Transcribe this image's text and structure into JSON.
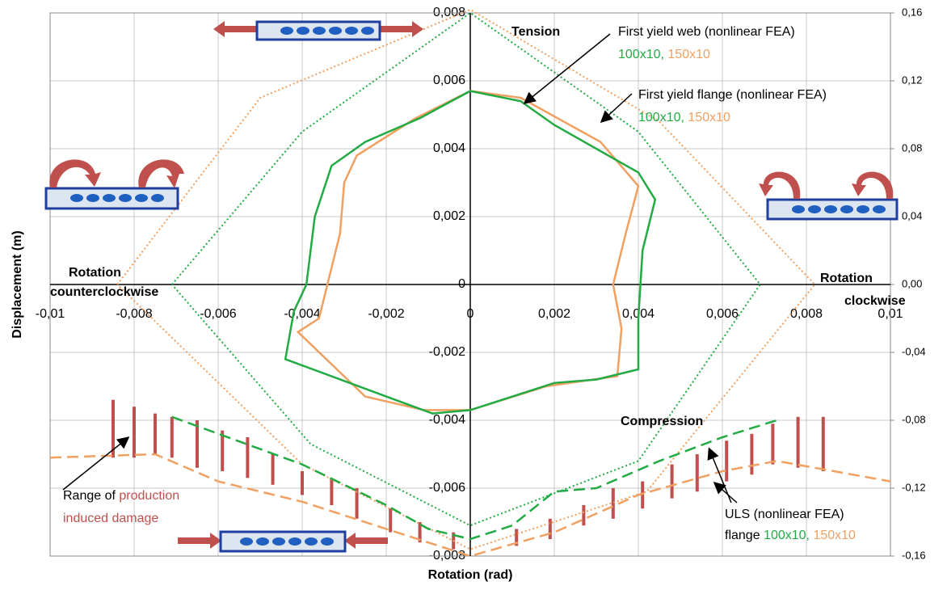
{
  "chart_data": {
    "type": "line",
    "xlabel": "Rotation (rad)",
    "ylabel": "Displacement (m)",
    "xlim": [
      -0.01,
      0.01
    ],
    "ylim": [
      -0.008,
      0.008
    ],
    "y2lim": [
      -0.16,
      0.16
    ],
    "grid": true,
    "xticks": [
      {
        "value": -0.01,
        "label": "-0,01"
      },
      {
        "value": -0.008,
        "label": "-0,008"
      },
      {
        "value": -0.006,
        "label": "-0,006"
      },
      {
        "value": -0.004,
        "label": "-0,004"
      },
      {
        "value": -0.002,
        "label": "-0,002"
      },
      0,
      {
        "value": 0.002,
        "label": "0,002"
      },
      {
        "value": 0.004,
        "label": "0,004"
      },
      {
        "value": 0.006,
        "label": "0,006"
      },
      {
        "value": 0.008,
        "label": "0,008"
      },
      {
        "value": 0.01,
        "label": "0,01"
      }
    ],
    "yticks": [
      {
        "value": -0.008,
        "label": "-0,008"
      },
      {
        "value": -0.006,
        "label": "-0,006"
      },
      {
        "value": -0.004,
        "label": "-0,004"
      },
      {
        "value": -0.002,
        "label": "-0,002"
      },
      0,
      {
        "value": 0.002,
        "label": "0,002"
      },
      {
        "value": 0.004,
        "label": "0,004"
      },
      {
        "value": 0.006,
        "label": "0,006"
      },
      {
        "value": 0.008,
        "label": "0,008"
      }
    ],
    "y2ticks": [
      {
        "value": -0.16,
        "label": "-0,16"
      },
      {
        "value": -0.12,
        "label": "-0,12"
      },
      {
        "value": -0.08,
        "label": "-0,08"
      },
      {
        "value": -0.04,
        "label": "-0,04"
      },
      {
        "value": 0,
        "label": "0,00"
      },
      {
        "value": 0.04,
        "label": "0,04"
      },
      {
        "value": 0.08,
        "label": "0,08"
      },
      {
        "value": 0.12,
        "label": "0,12"
      },
      {
        "value": 0.16,
        "label": "0,16"
      }
    ],
    "series": [
      {
        "color": "#f0a060",
        "style": "dotted",
        "x": [
          -0.0084,
          -0.005,
          0,
          0.0045,
          0.0082,
          0.0042,
          0,
          -0.004,
          -0.0084
        ],
        "values": [
          0,
          0.0055,
          0.0081,
          0.0048,
          0,
          -0.0061,
          -0.0078,
          -0.0053,
          0
        ]
      },
      {
        "color": "#22aa44",
        "style": "dotted",
        "x": [
          -0.0071,
          -0.004,
          0,
          0.004,
          0.0069,
          0.004,
          0,
          -0.0038,
          -0.0071
        ],
        "values": [
          0,
          0.0045,
          0.008,
          0.0045,
          0,
          -0.0052,
          -0.0071,
          -0.0047,
          0
        ]
      },
      {
        "color": "#f0a060",
        "style": "solid",
        "x": [
          -0.0013,
          -0.0027,
          -0.003,
          -0.0031,
          -0.0034,
          -0.0036,
          -0.0041,
          -0.0025,
          -0.0011,
          0,
          0.0018,
          0.0035,
          0.0036,
          0.0034,
          0.0037,
          0.004,
          0.0031,
          0.0012,
          0,
          -0.0013
        ],
        "values": [
          0.0049,
          0.0038,
          0.003,
          0.0015,
          0,
          -0.001,
          -0.0014,
          -0.0033,
          -0.0037,
          -0.0037,
          -0.003,
          -0.0027,
          -0.0013,
          0,
          0.0015,
          0.0029,
          0.0042,
          0.0055,
          0.0057,
          0.0049
        ]
      },
      {
        "color": "#22aa44",
        "style": "solid",
        "x": [
          0,
          0.0012,
          0.002,
          0.004,
          0.0044,
          0.0041,
          0.004,
          0.004,
          0.003,
          0.002,
          0,
          -0.0009,
          -0.002,
          -0.0044,
          -0.0042,
          -0.0039,
          -0.0037,
          -0.0033,
          -0.0025,
          -0.0012,
          0
        ],
        "values": [
          0.0057,
          0.0054,
          0.0047,
          0.0033,
          0.0025,
          0.001,
          -0.001,
          -0.0025,
          -0.0028,
          -0.0029,
          -0.0037,
          -0.0038,
          -0.0033,
          -0.0022,
          -0.0008,
          0,
          0.002,
          0.0035,
          0.0042,
          0.0049,
          0.0057
        ]
      },
      {
        "color": "#f0a060",
        "style": "dashed",
        "x": [
          -0.01,
          -0.0075,
          -0.006,
          -0.004,
          -0.002,
          0,
          0.002,
          0.004,
          0.006,
          0.0073,
          0.01
        ],
        "values": [
          -0.0051,
          -0.005,
          -0.0058,
          -0.0064,
          -0.0072,
          -0.008,
          -0.0073,
          -0.0062,
          -0.0055,
          -0.0052,
          -0.0058
        ]
      },
      {
        "color": "#22aa44",
        "style": "dashed",
        "x": [
          -0.0071,
          -0.004,
          -0.002,
          -0.001,
          0,
          0.001,
          0.002,
          0.003,
          0.0045,
          0.006,
          0.0073
        ],
        "values": [
          -0.0039,
          -0.0053,
          -0.0065,
          -0.0072,
          -0.0075,
          -0.0071,
          -0.0061,
          -0.006,
          -0.0052,
          -0.0045,
          -0.004
        ]
      }
    ],
    "ranges": {
      "color": "#c0504d",
      "x": [
        -0.0085,
        -0.008,
        -0.0075,
        -0.0071,
        -0.0065,
        -0.0059,
        -0.0053,
        -0.0047,
        -0.004,
        -0.0033,
        -0.0027,
        -0.0019,
        -0.0012,
        -0.0004,
        0.0011,
        0.0019,
        0.0027,
        0.0034,
        0.0041,
        0.0048,
        0.0054,
        0.0061,
        0.0067,
        0.0072,
        0.0078,
        0.0084
      ],
      "low": [
        -0.0051,
        -0.0051,
        -0.005,
        -0.0051,
        -0.0054,
        -0.0055,
        -0.0057,
        -0.0059,
        -0.0062,
        -0.0065,
        -0.0069,
        -0.0073,
        -0.0076,
        -0.0078,
        -0.0077,
        -0.0075,
        -0.0071,
        -0.0069,
        -0.0066,
        -0.0063,
        -0.0061,
        -0.0058,
        -0.0056,
        -0.0053,
        -0.0054,
        -0.0055
      ],
      "high": [
        -0.0034,
        -0.0036,
        -0.0038,
        -0.0039,
        -0.004,
        -0.0043,
        -0.0045,
        -0.005,
        -0.0055,
        -0.0057,
        -0.006,
        -0.0066,
        -0.007,
        -0.0073,
        -0.0072,
        -0.0069,
        -0.0065,
        -0.006,
        -0.0058,
        -0.0053,
        -0.005,
        -0.0046,
        -0.0044,
        -0.0041,
        -0.0039,
        -0.0039
      ]
    },
    "annotations": {
      "tension": "Tension",
      "compression": "Compression",
      "web": "First yield web (nonlinear FEA)",
      "flange": "First yield flange (nonlinear FEA)",
      "uls": "ULS (nonlinear FEA)",
      "flange_word": "flange",
      "green": "100x10,",
      "orange": "150x10",
      "ccw1": "Rotation",
      "ccw2": "counterclockwise",
      "cw1": "Rotation",
      "cw2": "clockwise",
      "range": "Range of",
      "production": "production",
      "induced": "induced damage"
    }
  }
}
